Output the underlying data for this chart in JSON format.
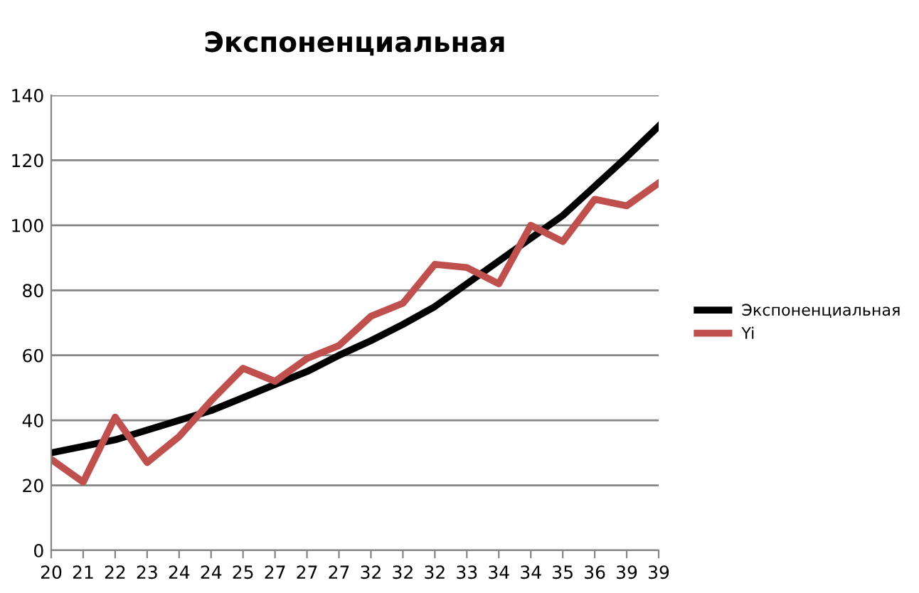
{
  "chart_data": {
    "type": "line",
    "title": "Экспоненциальная",
    "categories": [
      "20",
      "21",
      "22",
      "23",
      "24",
      "24",
      "25",
      "27",
      "27",
      "27",
      "32",
      "32",
      "32",
      "33",
      "34",
      "34",
      "35",
      "36",
      "39",
      "39"
    ],
    "series": [
      {
        "name": "Экспоненциальная",
        "color": "#000000",
        "values": [
          30,
          32,
          34,
          37,
          40,
          43,
          47,
          51,
          55,
          60,
          64.5,
          69.5,
          75,
          82,
          89,
          96,
          103,
          112,
          121,
          130.5
        ]
      },
      {
        "name": "Yi",
        "color": "#c0504d",
        "values": [
          28,
          21,
          41,
          27,
          35,
          46,
          56,
          52,
          59,
          63,
          72,
          76,
          88,
          87,
          82,
          100,
          95,
          108,
          106,
          113
        ]
      }
    ],
    "ylim": [
      0,
      140
    ],
    "yticks": [
      0,
      20,
      40,
      60,
      80,
      100,
      120,
      140
    ],
    "grid": "y",
    "legend": "right",
    "marker": "none",
    "line_style": "solid"
  }
}
